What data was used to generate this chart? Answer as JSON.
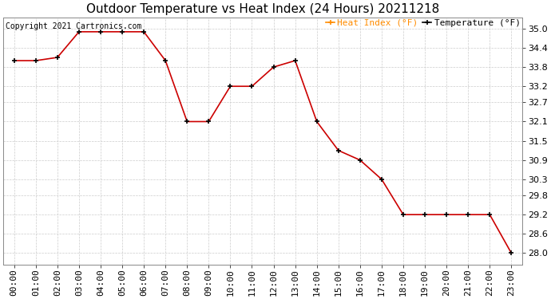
{
  "title": "Outdoor Temperature vs Heat Index (24 Hours) 20211218",
  "copyright": "Copyright 2021 Cartronics.com",
  "legend_heat_index": "Heat Index (°F)",
  "legend_temperature": "Temperature (°F)",
  "hours": [
    "00:00",
    "01:00",
    "02:00",
    "03:00",
    "04:00",
    "05:00",
    "06:00",
    "07:00",
    "08:00",
    "09:00",
    "10:00",
    "11:00",
    "12:00",
    "13:00",
    "14:00",
    "15:00",
    "16:00",
    "17:00",
    "18:00",
    "19:00",
    "20:00",
    "21:00",
    "22:00",
    "23:00"
  ],
  "temperature": [
    34.0,
    34.0,
    34.1,
    34.9,
    34.9,
    34.9,
    34.9,
    34.0,
    32.1,
    32.1,
    33.2,
    33.2,
    33.8,
    34.0,
    32.1,
    31.2,
    30.9,
    30.3,
    29.2,
    29.2,
    29.2,
    29.2,
    29.2,
    28.0
  ],
  "ylim_min": 27.65,
  "ylim_max": 35.35,
  "yticks": [
    35.0,
    34.4,
    33.8,
    33.2,
    32.7,
    32.1,
    31.5,
    30.9,
    30.3,
    29.8,
    29.2,
    28.6,
    28.0
  ],
  "line_color": "#cc0000",
  "marker_color": "#000000",
  "bg_color": "#ffffff",
  "plot_bg_color": "#ffffff",
  "grid_color": "#cccccc",
  "title_color": "#000000",
  "copyright_color": "#000000",
  "legend_heat_color": "#ff8c00",
  "legend_temp_color": "#000000",
  "title_fontsize": 11,
  "copyright_fontsize": 7,
  "tick_fontsize": 8,
  "legend_fontsize": 8
}
